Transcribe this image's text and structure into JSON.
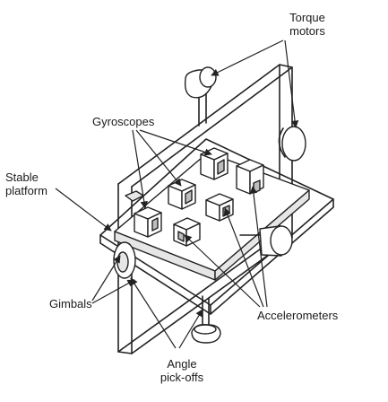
{
  "labels": {
    "torque_motors": [
      "Torque",
      "motors"
    ],
    "gyroscopes": "Gyroscopes",
    "stable_platform": [
      "Stable",
      "platform"
    ],
    "gimbals": "Gimbals",
    "accelerometers": "Accelerometers",
    "angle_pickoffs": [
      "Angle",
      "pick-offs"
    ]
  },
  "colors": {
    "line": "#222222",
    "background": "#ffffff",
    "shading": "#bdbdbd"
  }
}
